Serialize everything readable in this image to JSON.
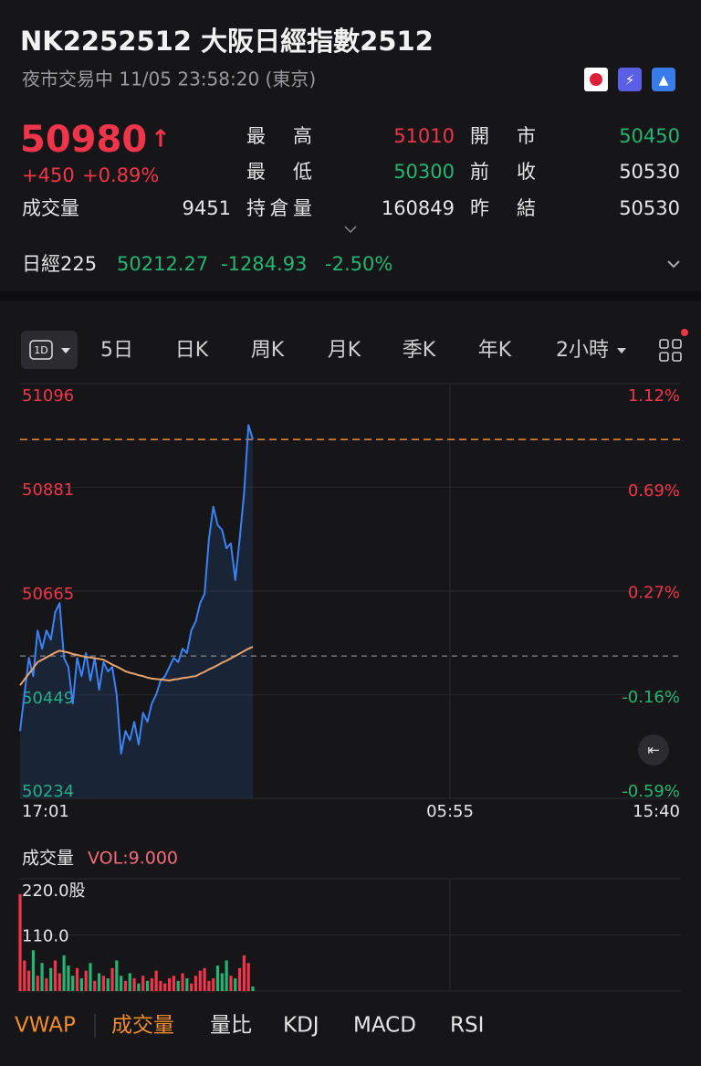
{
  "header": {
    "title": "NK2252512  大阪日經指數2512",
    "status": "夜市交易中 11/05 23:58:20 (東京)"
  },
  "quote": {
    "price": 50980,
    "change": "+450",
    "change_pct": "+0.89%",
    "volume_label": "成交量",
    "volume": 9451,
    "stats": [
      {
        "label": "最高",
        "value": 51010
      },
      {
        "label": "開市",
        "value": 50450
      },
      {
        "label": "最低",
        "value": 50300
      },
      {
        "label": "前收",
        "value": 50530
      },
      {
        "label": "持倉量",
        "value": 160849
      },
      {
        "label": "昨結",
        "value": 50530
      }
    ]
  },
  "index_row": {
    "name": "日經225",
    "price": 50212.27,
    "change": -1284.93,
    "change_pct": "-2.50%"
  },
  "tabs": [
    "1D",
    "5日",
    "日K",
    "周K",
    "月K",
    "季K",
    "年K",
    "2小時"
  ],
  "chart_data": [
    {
      "type": "line",
      "ylim": [
        50234,
        51096
      ],
      "yticks": [
        51096,
        50881,
        50665,
        50449,
        50234
      ],
      "y2lim": [
        -0.59,
        1.12
      ],
      "y2ticks": [
        {
          "value": 1.12,
          "label": "1.12%"
        },
        {
          "value": 0.69,
          "label": "0.69%"
        },
        {
          "value": 0.27,
          "label": "0.27%"
        },
        {
          "value": -0.16,
          "label": "-0.16%"
        },
        {
          "value": -0.59,
          "label": "-0.59%"
        }
      ],
      "x_labels": [
        "17:01",
        "05:55",
        "15:40"
      ],
      "series": [
        {
          "color": "#3b82f6",
          "values": [
            50374,
            50450,
            50526,
            50488,
            50583,
            50545,
            50583,
            50564,
            50621,
            50640,
            50526,
            50507,
            50431,
            50526,
            50488,
            50536,
            50479,
            50526,
            50460,
            50517,
            50498,
            50507,
            50450,
            50327,
            50374,
            50355,
            50393,
            50346,
            50412,
            50393,
            50431,
            50450,
            50479,
            50488,
            50507,
            50526,
            50517,
            50545,
            50536,
            50583,
            50602,
            50640,
            50659,
            50773,
            50840,
            50802,
            50792,
            50754,
            50764,
            50688,
            50773,
            50868,
            51010,
            50980
          ]
        },
        {
          "color": "#e8a46b",
          "values": [
            50469,
            50481,
            50493,
            50505,
            50517,
            50522,
            50527,
            50532,
            50537,
            50541,
            50539,
            50537,
            50534,
            50532,
            50530,
            50528,
            50527,
            50525,
            50524,
            50522,
            50517,
            50512,
            50508,
            50503,
            50498,
            50495,
            50493,
            50490,
            50488,
            50485,
            50483,
            50482,
            50481,
            50480,
            50479,
            50481,
            50482,
            50484,
            50485,
            50487,
            50488,
            50493,
            50497,
            50502,
            50506,
            50511,
            50516,
            50520,
            50525,
            50530,
            50535,
            50540,
            50545,
            50549
          ]
        }
      ],
      "last_line_color": "#f08c2e",
      "prev_close_line_color": "#8a8a8e"
    },
    {
      "type": "bar",
      "title": "成交量",
      "subtitle": "VOL:9.000",
      "ylim": [
        0,
        220
      ],
      "yticks": [
        {
          "value": 220,
          "label": "220.0股"
        },
        {
          "value": 110,
          "label": "110.0"
        }
      ],
      "up_color": "#f0354b",
      "down_color": "#22b573",
      "values": [
        190,
        60,
        40,
        80,
        30,
        55,
        25,
        45,
        60,
        35,
        70,
        50,
        30,
        45,
        25,
        40,
        55,
        20,
        35,
        30,
        25,
        45,
        60,
        30,
        20,
        35,
        25,
        15,
        30,
        20,
        25,
        40,
        20,
        15,
        25,
        30,
        20,
        35,
        25,
        15,
        30,
        40,
        45,
        20,
        25,
        50,
        35,
        60,
        30,
        25,
        45,
        70,
        55,
        9
      ]
    }
  ],
  "indicator_tabs": [
    "VWAP",
    "成交量",
    "量比",
    "KDJ",
    "MACD",
    "RSI"
  ]
}
